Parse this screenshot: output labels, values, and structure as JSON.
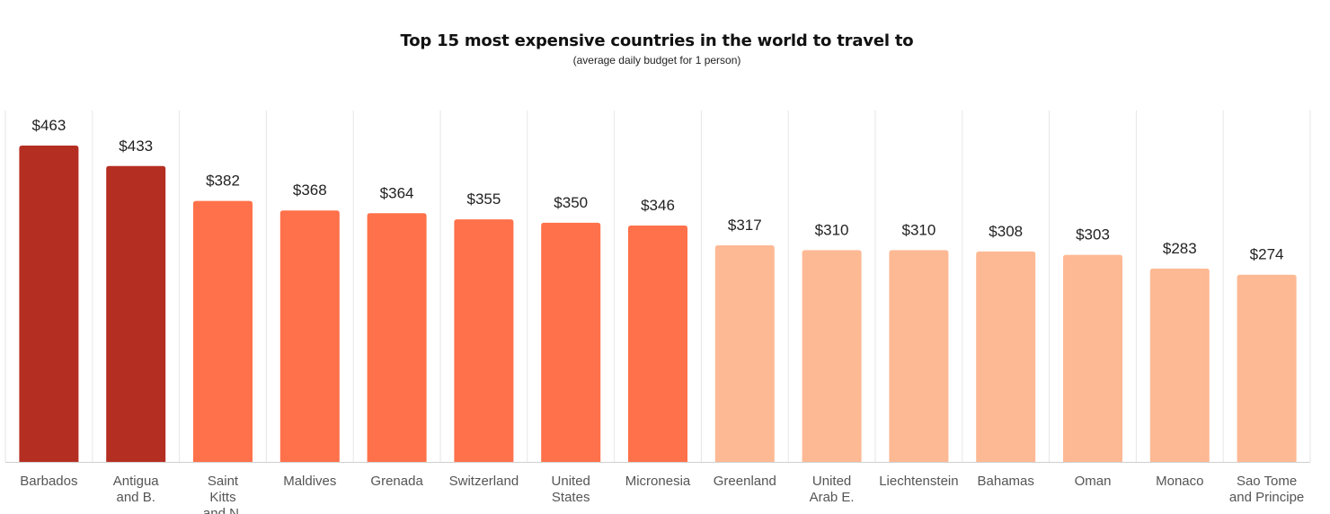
{
  "chart_data": {
    "type": "bar",
    "title": "Top 15 most expensive countries in the world to travel to",
    "subtitle": "(average daily budget for 1 person)",
    "categories": [
      [
        "Barbados"
      ],
      [
        "Antigua",
        "and B."
      ],
      [
        "Saint",
        "Kitts",
        "and N."
      ],
      [
        "Maldives"
      ],
      [
        "Grenada"
      ],
      [
        "Switzerland"
      ],
      [
        "United",
        "States"
      ],
      [
        "Micronesia"
      ],
      [
        "Greenland"
      ],
      [
        "United",
        "Arab E."
      ],
      [
        "Liechtenstein"
      ],
      [
        "Bahamas"
      ],
      [
        "Oman"
      ],
      [
        "Monaco"
      ],
      [
        "Sao Tome",
        "and Principe"
      ]
    ],
    "values": [
      463,
      433,
      382,
      368,
      364,
      355,
      350,
      346,
      317,
      310,
      310,
      308,
      303,
      283,
      274
    ],
    "value_labels": [
      "$463",
      "$433",
      "$382",
      "$368",
      "$364",
      "$355",
      "$350",
      "$346",
      "$317",
      "$310",
      "$310",
      "$308",
      "$303",
      "$283",
      "$274"
    ],
    "bar_colors": [
      "#b52e22",
      "#b52e22",
      "#ff714a",
      "#ff714a",
      "#ff714a",
      "#ff714a",
      "#ff714a",
      "#ff714a",
      "#fdb994",
      "#fdb994",
      "#fdb994",
      "#fdb994",
      "#fdb994",
      "#fdb994",
      "#fdb994"
    ],
    "ylim": [
      0,
      463
    ],
    "xlabel": "",
    "ylabel": "",
    "grid": true,
    "legend": "none"
  }
}
